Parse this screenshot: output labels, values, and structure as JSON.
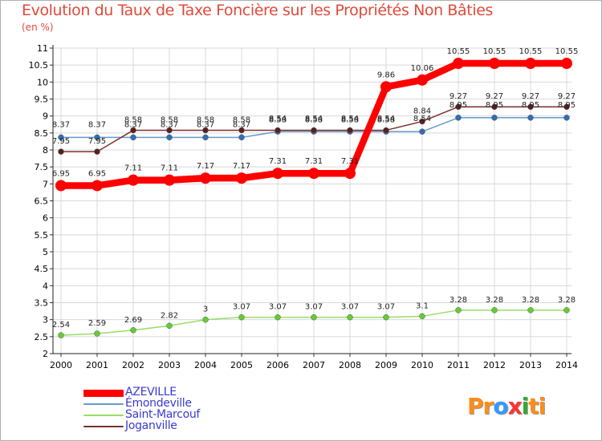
{
  "header": {
    "title": "Evolution du Taux de Taxe Foncière sur les Propriétés Non Bâties",
    "unit": "(en %)"
  },
  "legend": [
    {
      "label": "AZEVILLE",
      "color": "#ff0000"
    },
    {
      "label": "Émondeville",
      "color": "#6699cc"
    },
    {
      "label": "Saint-Marcouf",
      "color": "#99dd66"
    },
    {
      "label": "Joganville",
      "color": "#7a2f2f"
    }
  ],
  "logo": {
    "letters": [
      "P",
      "r",
      "o",
      "x",
      "i",
      "t",
      "i"
    ],
    "colors": [
      "#ff8c1a",
      "#ff8c1a",
      "#3399ff",
      "#ff3333",
      "#33aa33",
      "#ff8c1a",
      "#ff8c1a"
    ]
  },
  "chart_data": {
    "type": "line",
    "title": "Evolution du Taux de Taxe Foncière sur les Propriétés Non Bâties",
    "ylabel": "(en %)",
    "xlabel": "",
    "ylim": [
      2,
      11
    ],
    "grid": true,
    "legend_position": "bottom-left",
    "y_ticks": [
      "2",
      "2.5",
      "3",
      "3.5",
      "4",
      "4.5",
      "5",
      "5.5",
      "6",
      "6.5",
      "7",
      "7.5",
      "8",
      "8.5",
      "9",
      "9.5",
      "10",
      "10.5",
      "11"
    ],
    "categories": [
      "2000",
      "2001",
      "2002",
      "2003",
      "2004",
      "2005",
      "2006",
      "2007",
      "2008",
      "2009",
      "2010",
      "2011",
      "2012",
      "2013",
      "2014"
    ],
    "series": [
      {
        "name": "AZEVILLE",
        "color": "#ff0000",
        "values": [
          6.95,
          6.95,
          7.11,
          7.11,
          7.17,
          7.17,
          7.31,
          7.31,
          7.31,
          9.86,
          10.06,
          10.55,
          10.55,
          10.55,
          10.55
        ],
        "labels": [
          "6.95",
          "6.95",
          "7.11",
          "7.11",
          "7.17",
          "7.17",
          "7.31",
          "7.31",
          "7.31",
          "9.86",
          "10.06",
          "10.55",
          "10.55",
          "10.55",
          "10.55"
        ]
      },
      {
        "name": "Émondeville",
        "color": "#6699cc",
        "values": [
          8.37,
          8.37,
          8.37,
          8.37,
          8.37,
          8.37,
          8.54,
          8.54,
          8.54,
          8.54,
          8.54,
          8.95,
          8.95,
          8.95,
          8.95
        ],
        "labels": [
          "8.37",
          "8.37",
          "8.37",
          "8.37",
          "8.37",
          "8.37",
          "8.54",
          "8.54",
          "8.54",
          "8.54",
          "8.54",
          "8.95",
          "8.95",
          "8.95",
          "8.95"
        ]
      },
      {
        "name": "Saint-Marcouf",
        "color": "#99dd66",
        "values": [
          2.54,
          2.59,
          2.69,
          2.82,
          3,
          3.07,
          3.07,
          3.07,
          3.07,
          3.07,
          3.1,
          3.28,
          3.28,
          3.28,
          3.28
        ],
        "labels": [
          "2.54",
          "2.59",
          "2.69",
          "2.82",
          "3",
          "3.07",
          "3.07",
          "3.07",
          "3.07",
          "3.07",
          "3.1",
          "3.28",
          "3.28",
          "3.28",
          "3.28"
        ]
      },
      {
        "name": "Joganville",
        "color": "#7a2f2f",
        "values": [
          7.95,
          7.95,
          8.58,
          8.58,
          8.58,
          8.58,
          8.58,
          8.58,
          8.58,
          8.58,
          8.84,
          9.27,
          9.27,
          9.27,
          9.27
        ],
        "labels": [
          "7.95",
          "7.95",
          "8.58",
          "8.58",
          "8.58",
          "8.58",
          "8.58",
          "8.58",
          "8.58",
          "8.58",
          "8.84",
          "9.27",
          "9.27",
          "9.27",
          "9.27"
        ]
      }
    ]
  }
}
